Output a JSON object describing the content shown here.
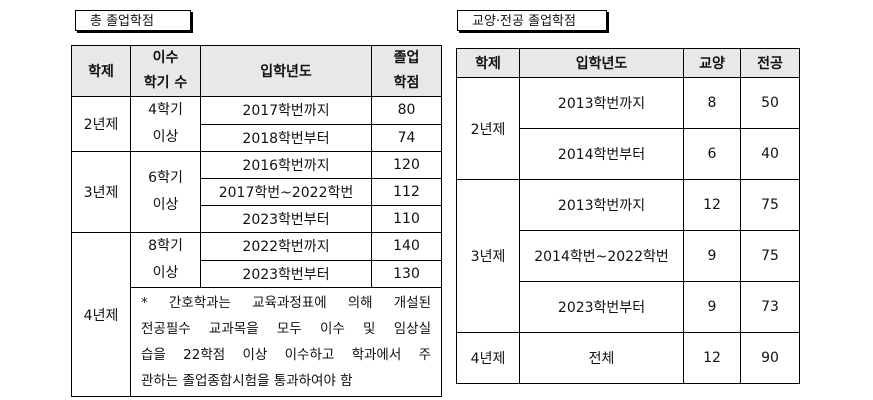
{
  "left": {
    "title": "총 졸업학점",
    "headers": {
      "system": "학제",
      "semesters": [
        "이수",
        "학기 수"
      ],
      "year": "입학년도",
      "credits": [
        "졸업",
        "학점"
      ]
    },
    "groups": [
      {
        "system": "2년제",
        "semesters": [
          "4학기",
          "이상"
        ],
        "rows": [
          {
            "year": "2017학번까지",
            "credits": "80"
          },
          {
            "year": "2018학번부터",
            "credits": "74"
          }
        ]
      },
      {
        "system": "3년제",
        "semesters": [
          "6학기",
          "이상"
        ],
        "rows": [
          {
            "year": "2016학번까지",
            "credits": "120"
          },
          {
            "year": "2017학번~2022학번",
            "credits": "112"
          },
          {
            "year": "2023학번부터",
            "credits": "110"
          }
        ]
      },
      {
        "system": "4년제",
        "semesters": [
          "8학기",
          "이상"
        ],
        "rows": [
          {
            "year": "2022학번까지",
            "credits": "140"
          },
          {
            "year": "2023학번부터",
            "credits": "130"
          }
        ]
      }
    ],
    "note_lines": [
      "* 간호학과는 교육과정표에 의해 개설된",
      "전공필수 교과목을 모두 이수 및 임상실",
      "습을 22학점 이상 이수하고 학과에서 주",
      "관하는 졸업종합시험을 통과하여야 함"
    ]
  },
  "right": {
    "title": "교양·전공 졸업학점",
    "headers": {
      "system": "학제",
      "year": "입학년도",
      "liberal": "교양",
      "major": "전공"
    },
    "groups": [
      {
        "system": "2년제",
        "rows": [
          {
            "year": "2013학번까지",
            "liberal": "8",
            "major": "50"
          },
          {
            "year": "2014학번부터",
            "liberal": "6",
            "major": "40"
          }
        ]
      },
      {
        "system": "3년제",
        "rows": [
          {
            "year": "2013학번까지",
            "liberal": "12",
            "major": "75"
          },
          {
            "year": "2014학번~2022학번",
            "liberal": "9",
            "major": "75"
          },
          {
            "year": "2023학번부터",
            "liberal": "9",
            "major": "73"
          }
        ]
      },
      {
        "system": "4년제",
        "rows": [
          {
            "year": "전체",
            "liberal": "12",
            "major": "90"
          }
        ]
      }
    ]
  }
}
